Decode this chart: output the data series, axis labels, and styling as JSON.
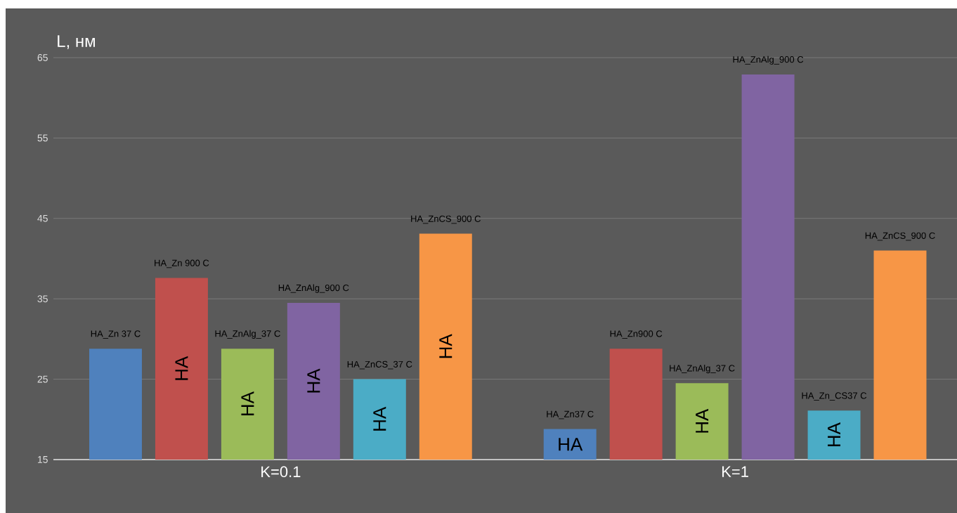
{
  "chart_data": {
    "type": "bar",
    "ylabel": "L, нм",
    "categories": [
      "K=0.1",
      "K=1"
    ],
    "series": [
      {
        "color": "#4f81bd",
        "values": [
          28.8,
          18.8
        ]
      },
      {
        "color": "#c0504d",
        "values": [
          37.6,
          28.8
        ]
      },
      {
        "color": "#9bbb59",
        "values": [
          28.8,
          24.5
        ]
      },
      {
        "color": "#8064a2",
        "values": [
          34.5,
          62.9
        ]
      },
      {
        "color": "#4bacc6",
        "values": [
          25.0,
          21.1
        ]
      },
      {
        "color": "#f79646",
        "values": [
          43.1,
          41.0
        ]
      }
    ],
    "ylim": [
      15,
      65
    ],
    "yticks": [
      15,
      25,
      35,
      45,
      55,
      65
    ],
    "grid": "y",
    "annotations": [
      "HA_Zn 37 C",
      "HA_Zn 900 C",
      "HA_ZnAlg_37 C",
      "HA_ZnAlg_900 C",
      "HA_ZnCS_37 C",
      "HA_ZnCS_900 C",
      "HA_Zn37 C",
      "HA_Zn900 C",
      "HA_ZnAlg_37 C",
      "HA_ZnAlg_900 C",
      "HA_Zn_CS37 C",
      "HA_ZnCS_900 C",
      "HA",
      "HA",
      "HA",
      "HA",
      "HA",
      "HA",
      "HA",
      "HA"
    ]
  }
}
